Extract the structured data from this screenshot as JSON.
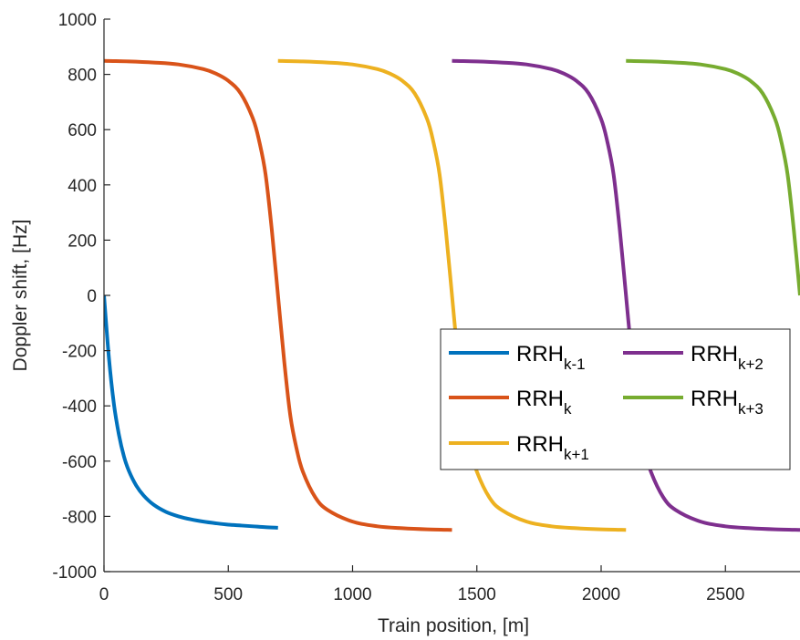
{
  "chart_data": {
    "type": "line",
    "xlabel": "Train position, [m]",
    "ylabel": "Doppler shift, [Hz]",
    "xlim": [
      0,
      2800
    ],
    "ylim": [
      -1000,
      1000
    ],
    "xticks": [
      0,
      500,
      1000,
      1500,
      2000,
      2500
    ],
    "yticks": [
      1000,
      800,
      600,
      400,
      200,
      0,
      -200,
      -400,
      -600,
      -800,
      -1000
    ],
    "grid": false,
    "legend_placement": "center-right",
    "series": [
      {
        "base": "RRH",
        "sub": "k-1",
        "color": "#0072BD",
        "x": [
          0,
          20,
          40,
          60,
          80,
          100,
          130,
          160,
          200,
          250,
          300,
          350,
          400,
          450,
          500,
          550,
          600,
          650,
          700
        ],
        "y": [
          0,
          -228,
          -394,
          -504,
          -582,
          -635,
          -689,
          -725,
          -758,
          -784,
          -800,
          -811,
          -819,
          -825,
          -830,
          -833,
          -836,
          -839,
          -841
        ]
      },
      {
        "base": "RRH",
        "sub": "k",
        "color": "#D95319",
        "x": [
          0,
          100,
          200,
          300,
          400,
          450,
          500,
          550,
          600,
          625,
          650,
          675,
          700,
          725,
          750,
          775,
          800,
          850,
          900,
          1000,
          1100,
          1200,
          1300,
          1400
        ],
        "y": [
          849,
          847,
          843,
          836,
          819,
          803,
          777,
          731,
          638,
          556,
          438,
          238,
          0,
          -238,
          -438,
          -556,
          -638,
          -731,
          -777,
          -819,
          -836,
          -843,
          -847,
          -849
        ]
      },
      {
        "base": "RRH",
        "sub": "k+1",
        "color": "#EDB120",
        "x": [
          700,
          800,
          900,
          1000,
          1100,
          1150,
          1200,
          1250,
          1300,
          1325,
          1350,
          1375,
          1400,
          1425,
          1450,
          1475,
          1500,
          1550,
          1600,
          1700,
          1800,
          1900,
          2000,
          2100
        ],
        "y": [
          849,
          847,
          843,
          836,
          819,
          803,
          777,
          731,
          638,
          556,
          438,
          238,
          0,
          -238,
          -438,
          -556,
          -638,
          -731,
          -777,
          -819,
          -836,
          -843,
          -847,
          -849
        ]
      },
      {
        "base": "RRH",
        "sub": "k+2",
        "color": "#7E2F8E",
        "x": [
          1400,
          1500,
          1600,
          1700,
          1800,
          1850,
          1900,
          1950,
          2000,
          2025,
          2050,
          2075,
          2100,
          2125,
          2150,
          2175,
          2200,
          2250,
          2300,
          2400,
          2500,
          2600,
          2700,
          2800
        ],
        "y": [
          849,
          847,
          843,
          836,
          819,
          803,
          777,
          731,
          638,
          556,
          438,
          238,
          0,
          -238,
          -438,
          -556,
          -638,
          -731,
          -777,
          -819,
          -836,
          -843,
          -847,
          -849
        ]
      },
      {
        "base": "RRH",
        "sub": "k+3",
        "color": "#77AC30",
        "x": [
          2100,
          2200,
          2300,
          2400,
          2500,
          2550,
          2600,
          2650,
          2700,
          2725,
          2750,
          2775,
          2800
        ],
        "y": [
          849,
          847,
          843,
          836,
          819,
          803,
          777,
          731,
          638,
          556,
          438,
          238,
          0
        ]
      }
    ]
  }
}
